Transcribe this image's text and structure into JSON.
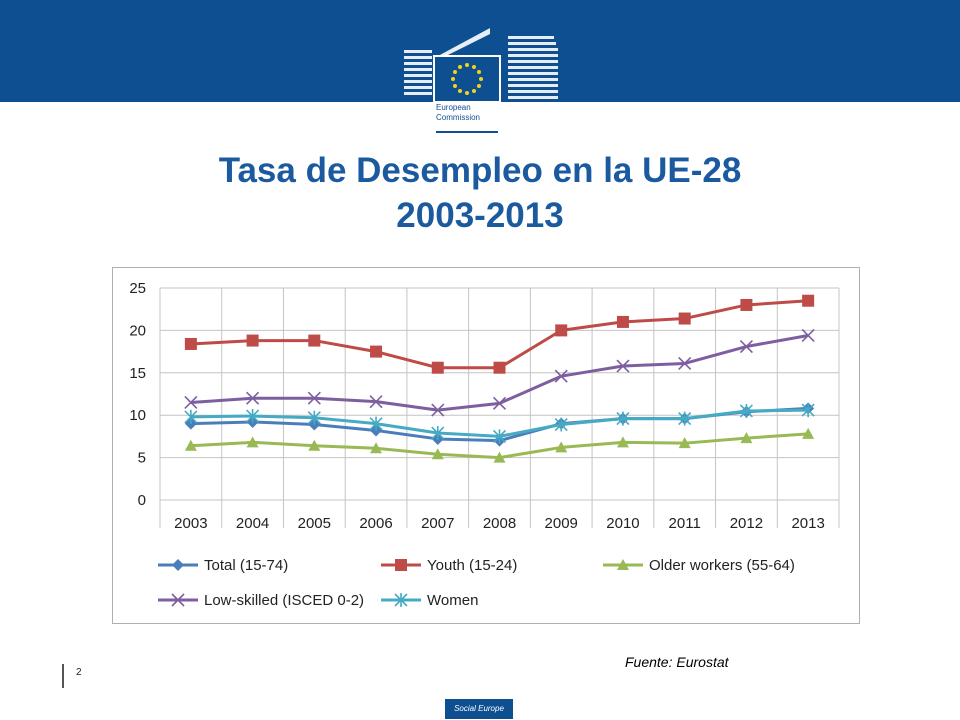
{
  "header": {
    "logo_text_line1": "European",
    "logo_text_line2": "Commission",
    "brand_color": "#0e4f91"
  },
  "slide": {
    "title_line1": "Tasa de Desempleo en la UE-28",
    "title_line2": "2003-2013",
    "source": "Fuente: Eurostat",
    "page_number": "2",
    "footer_logo": "Social Europe"
  },
  "chart_data": {
    "type": "line",
    "x": [
      "2003",
      "2004",
      "2005",
      "2006",
      "2007",
      "2008",
      "2009",
      "2010",
      "2011",
      "2012",
      "2013"
    ],
    "ylim": [
      0,
      25
    ],
    "yticks": [
      "0",
      "5",
      "10",
      "15",
      "20",
      "25"
    ],
    "grid": true,
    "legend_position": "bottom",
    "series": [
      {
        "name": "Total (15-74)",
        "values": [
          9.0,
          9.2,
          8.9,
          8.2,
          7.2,
          7.0,
          9.0,
          9.6,
          9.6,
          10.4,
          10.8
        ],
        "color": "#4a7ebb",
        "marker": "diamond"
      },
      {
        "name": "Youth (15-24)",
        "values": [
          18.4,
          18.8,
          18.8,
          17.5,
          15.6,
          15.6,
          20.0,
          21.0,
          21.4,
          23.0,
          23.5
        ],
        "color": "#be4b48",
        "marker": "square"
      },
      {
        "name": "Older workers (55-64)",
        "values": [
          6.4,
          6.8,
          6.4,
          6.1,
          5.4,
          5.0,
          6.2,
          6.8,
          6.7,
          7.3,
          7.8
        ],
        "color": "#98b954",
        "marker": "triangle"
      },
      {
        "name": "Low-skilled (ISCED 0-2)",
        "values": [
          11.5,
          12.0,
          12.0,
          11.6,
          10.6,
          11.4,
          14.6,
          15.8,
          16.1,
          18.1,
          19.4
        ],
        "color": "#7d5fa0",
        "marker": "x"
      },
      {
        "name": "Women",
        "values": [
          9.8,
          9.9,
          9.7,
          9.0,
          7.9,
          7.5,
          8.9,
          9.6,
          9.6,
          10.5,
          10.6
        ],
        "color": "#46aac5",
        "marker": "star"
      }
    ]
  }
}
